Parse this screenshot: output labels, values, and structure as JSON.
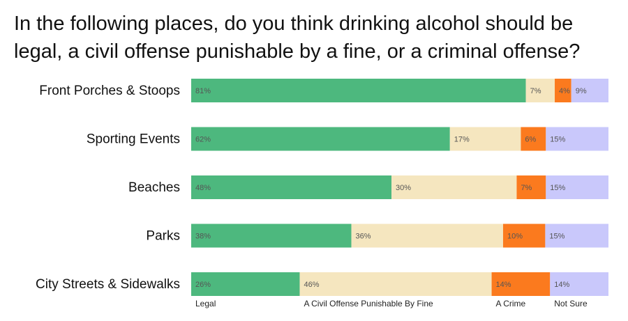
{
  "chart_data": {
    "type": "bar",
    "orientation": "horizontal",
    "stacked": true,
    "title": "In the following places, do you think drinking alcohol should be legal, a civil offense punishable by a fine, or a criminal offense?",
    "categories": [
      "Front Porches & Stoops",
      "Sporting Events",
      "Beaches",
      "Parks",
      "City Streets & Sidewalks"
    ],
    "series": [
      {
        "name": "Legal",
        "color": "#4db87e",
        "values": [
          81,
          62,
          48,
          38,
          26
        ]
      },
      {
        "name": "A Civil Offense Punishable By Fine",
        "color": "#f5e6bf",
        "values": [
          7,
          17,
          30,
          36,
          46
        ]
      },
      {
        "name": "A Crime",
        "color": "#fb7a1e",
        "values": [
          4,
          6,
          7,
          10,
          14
        ]
      },
      {
        "name": "Not Sure",
        "color": "#c9c8fb",
        "values": [
          9,
          15,
          15,
          15,
          14
        ]
      }
    ],
    "value_suffix": "%",
    "xlim": [
      0,
      100
    ],
    "grid": false,
    "legend_position": "bottom"
  }
}
